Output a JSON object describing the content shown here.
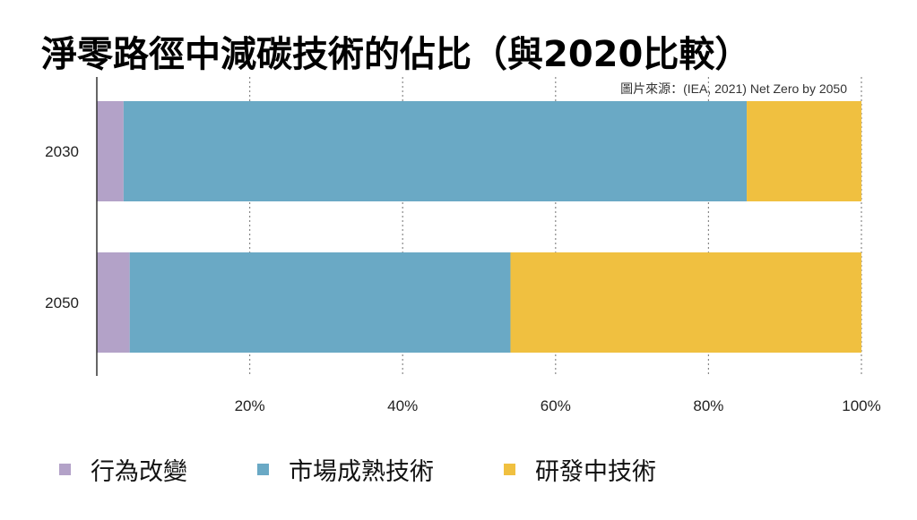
{
  "header": {
    "title": "淨零路徑中減碳技術的佔比（與2020比較）",
    "source": "圖片來源：(IEA, 2021) Net Zero by 2050"
  },
  "colors": {
    "behavior": "#b3a2c8",
    "mature": "#6aa9c5",
    "rnd": "#f0c040",
    "axis": "#333333",
    "grid": "#888888"
  },
  "chart_data": {
    "type": "bar",
    "orientation": "horizontal",
    "stacked": true,
    "title": "淨零路徑中減碳技術的佔比（與2020比較）",
    "categories": [
      "2030",
      "2050"
    ],
    "series": [
      {
        "name": "行為改變",
        "values": [
          3.5,
          4.3
        ],
        "color": "#b3a2c8"
      },
      {
        "name": "市場成熟技術",
        "values": [
          81.5,
          49.8
        ],
        "color": "#6aa9c5"
      },
      {
        "name": "研發中技術",
        "values": [
          15.0,
          45.9
        ],
        "color": "#f0c040"
      }
    ],
    "xlim": [
      0,
      100
    ],
    "xticks": [
      "20%",
      "40%",
      "60%",
      "80%",
      "100%"
    ],
    "xtick_values": [
      20,
      40,
      60,
      80,
      100
    ],
    "grid": "vertical dotted",
    "legend_position": "bottom"
  }
}
